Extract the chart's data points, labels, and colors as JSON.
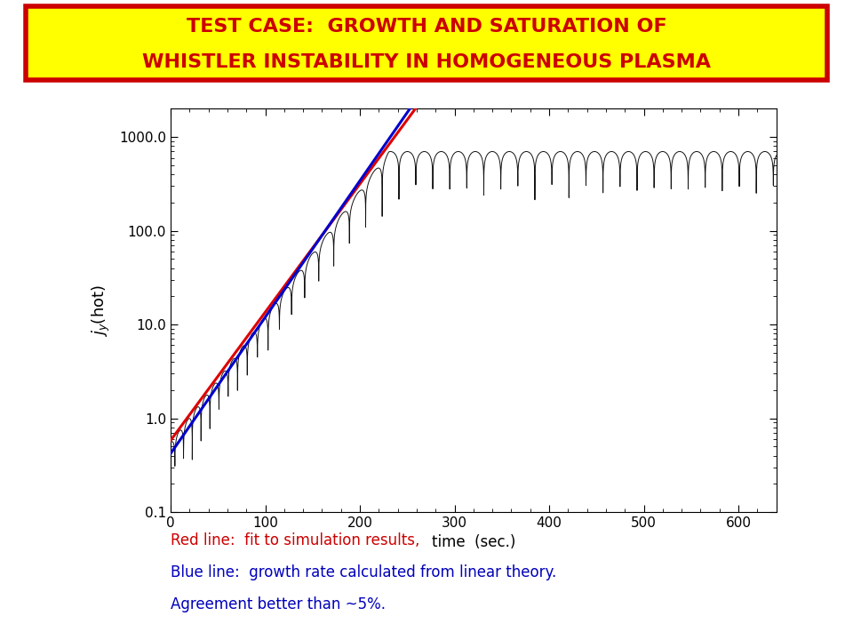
{
  "title_line1": "TEST CASE:  GROWTH AND SATURATION OF",
  "title_line2": "WHISTLER INSTABILITY IN HOMOGENEOUS PLASMA",
  "title_color": "#cc0000",
  "title_bg_color": "#ffff00",
  "title_border_color": "#cc0000",
  "xlabel": "time  (sec.)",
  "ylabel_parts": [
    "j",
    "y",
    "(hot)"
  ],
  "xlim": [
    0,
    640
  ],
  "ylim_log": [
    0.1,
    2000.0
  ],
  "yticks": [
    0.1,
    1.0,
    10.0,
    100.0,
    1000.0
  ],
  "ytick_labels": [
    "0.1",
    "1.0",
    "10.0",
    "100.0",
    "1000.0"
  ],
  "xticks": [
    0,
    100,
    200,
    300,
    400,
    500,
    600
  ],
  "red_color": "#dd0000",
  "blue_color": "#0000cc",
  "black_color": "#111111",
  "annotation_line1": "Red line:  fit to simulation results,",
  "annotation_line2": "Blue line:  growth rate calculated from linear theory.",
  "annotation_line3": "Agreement better than ~5%.",
  "annotation_color_red": "#cc0000",
  "annotation_color_blue": "#0000bb",
  "red_y0": 0.58,
  "red_growth": 0.0315,
  "blue_y0": 0.42,
  "blue_growth": 0.0335,
  "red_x_end": 315,
  "blue_x_end": 305,
  "sim_y0": 0.55,
  "sim_growth": 0.031,
  "sim_saturation": 700.0,
  "osc_period_early": 9.0,
  "osc_period_late": 18.0,
  "osc_transition": 130.0,
  "bg_color": "#ffffff"
}
